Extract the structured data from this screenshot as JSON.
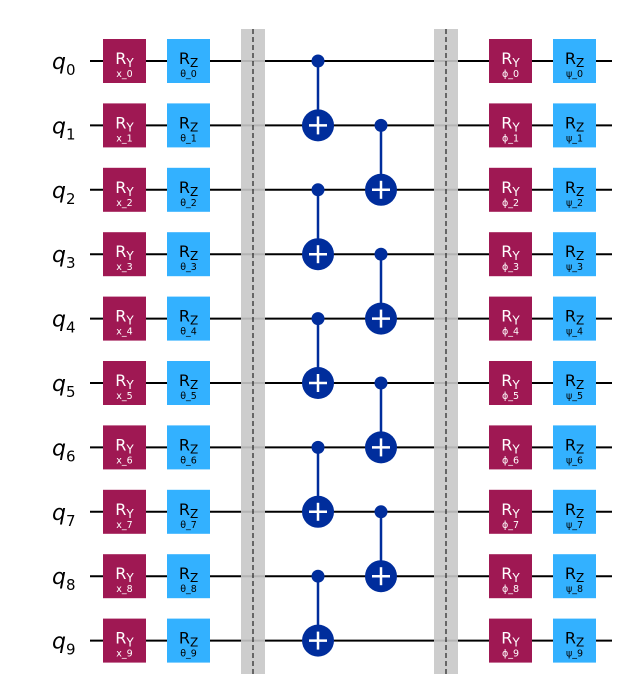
{
  "colors": {
    "ry": "#9f1853",
    "rz": "#33b1ff",
    "cnot": "#002d9c",
    "barrier": "#c8c8c8",
    "wire": "#000000"
  },
  "qubits": [
    "0",
    "1",
    "2",
    "3",
    "4",
    "5",
    "6",
    "7",
    "8",
    "9"
  ],
  "qubit_prefix": "q",
  "layer1": {
    "ry": {
      "label": "R",
      "sub": "Y",
      "params": [
        "x_0",
        "x_1",
        "x_2",
        "x_3",
        "x_4",
        "x_5",
        "x_6",
        "x_7",
        "x_8",
        "x_9"
      ]
    },
    "rz": {
      "label": "R",
      "sub": "Z",
      "params": [
        "θ_0",
        "θ_1",
        "θ_2",
        "θ_3",
        "θ_4",
        "θ_5",
        "θ_6",
        "θ_7",
        "θ_8",
        "θ_9"
      ]
    }
  },
  "cnot_columns": [
    [
      [
        0,
        1
      ],
      [
        2,
        3
      ],
      [
        4,
        5
      ],
      [
        6,
        7
      ],
      [
        8,
        9
      ]
    ],
    [
      [
        1,
        2
      ],
      [
        3,
        4
      ],
      [
        5,
        6
      ],
      [
        7,
        8
      ]
    ]
  ],
  "layer2": {
    "ry": {
      "label": "R",
      "sub": "Y",
      "params": [
        "ϕ_0",
        "ϕ_1",
        "ϕ_2",
        "ϕ_3",
        "ϕ_4",
        "ϕ_5",
        "ϕ_6",
        "ϕ_7",
        "ϕ_8",
        "ϕ_9"
      ]
    },
    "rz": {
      "label": "R",
      "sub": "Z",
      "params": [
        "ψ_0",
        "ψ_1",
        "ψ_2",
        "ψ_3",
        "ψ_4",
        "ψ_5",
        "ψ_6",
        "ψ_7",
        "ψ_8",
        "ψ_9"
      ]
    }
  }
}
